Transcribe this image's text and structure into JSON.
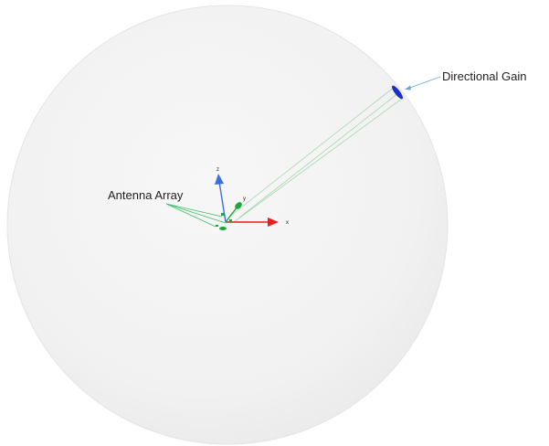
{
  "labels": {
    "directional_gain": "Directional Gain",
    "antenna_array": "Antenna Array"
  },
  "axes": {
    "z": "z",
    "y": "y",
    "x": "x"
  },
  "colors": {
    "sphere_fill": "#f2f2f2",
    "sphere_edge": "#e6e6e6",
    "x_axis": "#ee1c1c",
    "y_axis": "#1fa83a",
    "z_axis": "#3b6fe0",
    "beam": "#9fd6a8",
    "leader_blue": "#6aa7e0",
    "leader_green": "#3fbf6a",
    "gain_ellipse": "#1a2fc9"
  }
}
